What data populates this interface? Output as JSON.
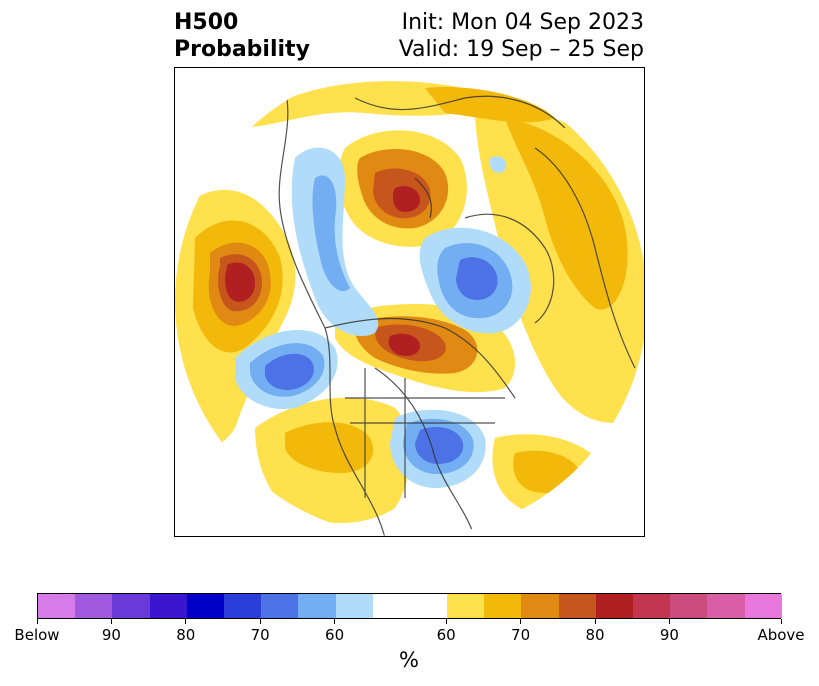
{
  "header": {
    "title_line1": "H500",
    "title_line2": "Probability",
    "init_line": "Init: Mon 04 Sep 2023",
    "valid_line": "Valid: 19 Sep – 25 Sep"
  },
  "colorbar": {
    "label": "%",
    "segments": [
      {
        "color": "#d77be8"
      },
      {
        "color": "#a05ae0"
      },
      {
        "color": "#6a3ad8"
      },
      {
        "color": "#3a17cf"
      },
      {
        "color": "#0000c8"
      },
      {
        "color": "#2b3ed9"
      },
      {
        "color": "#4d72e6"
      },
      {
        "color": "#74aef2"
      },
      {
        "color": "#b0dcfa"
      },
      {
        "color": "#ffffff",
        "double": true
      },
      {
        "color": "#ffe04d"
      },
      {
        "color": "#f2b80a"
      },
      {
        "color": "#e08a14"
      },
      {
        "color": "#c6561b"
      },
      {
        "color": "#b02020"
      },
      {
        "color": "#c2364f"
      },
      {
        "color": "#cc4d7d"
      },
      {
        "color": "#d95ea6"
      },
      {
        "color": "#e878dc"
      }
    ],
    "ticks": [
      "Below",
      "90",
      "80",
      "70",
      "60",
      "60",
      "70",
      "80",
      "90",
      "Above"
    ]
  }
}
